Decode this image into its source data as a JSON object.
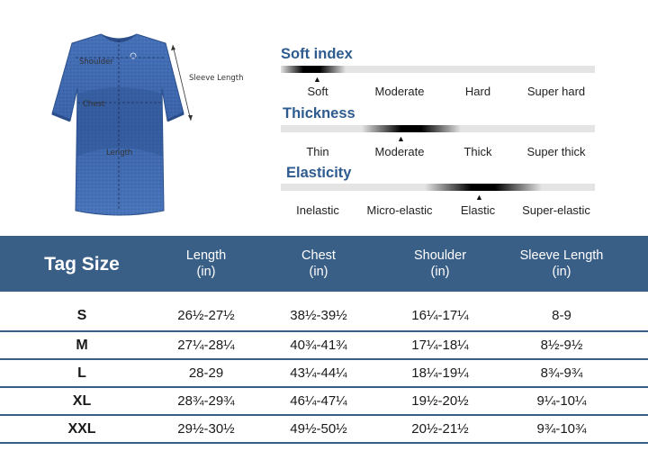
{
  "colors": {
    "accent": "#3a5f87",
    "title": "#2e5b8f",
    "shirt": "#3d66ad"
  },
  "diagram": {
    "icon": "tshirt-icon",
    "labels": {
      "shoulder": "Shoulder",
      "chest": "Chest",
      "length": "Length",
      "sleeve": "Sleeve Length"
    }
  },
  "scales": [
    {
      "title": "Soft index",
      "options": [
        "Soft",
        "Moderate",
        "Hard",
        "Super hard"
      ],
      "selected": "Soft"
    },
    {
      "title": "Thickness",
      "options": [
        "Thin",
        "Moderate",
        "Thick",
        "Super thick"
      ],
      "selected": "Moderate"
    },
    {
      "title": "Elasticity",
      "options": [
        "Inelastic",
        "Micro-elastic",
        "Elastic",
        "Super-elastic"
      ],
      "selected": "Elastic"
    }
  ],
  "table": {
    "headers": [
      {
        "title": "Tag Size",
        "unit": ""
      },
      {
        "title": "Length",
        "unit": "(in)"
      },
      {
        "title": "Chest",
        "unit": "(in)"
      },
      {
        "title": "Shoulder",
        "unit": "(in)"
      },
      {
        "title": "Sleeve Length",
        "unit": "(in)"
      }
    ],
    "rows": [
      [
        "S",
        "26½-27½",
        "38½-39½",
        "16¼-17¼",
        "8-9"
      ],
      [
        "M",
        "27¼-28¼",
        "40¾-41¾",
        "17¼-18¼",
        "8½-9½"
      ],
      [
        "L",
        "28-29",
        "43¼-44¼",
        "18¼-19¼",
        "8¾-9¾"
      ],
      [
        "XL",
        "28¾-29¾",
        "46¼-47¼",
        "19½-20½",
        "9¼-10¼"
      ],
      [
        "XXL",
        "29½-30½",
        "49½-50½",
        "20½-21½",
        "9¾-10¾"
      ]
    ]
  }
}
